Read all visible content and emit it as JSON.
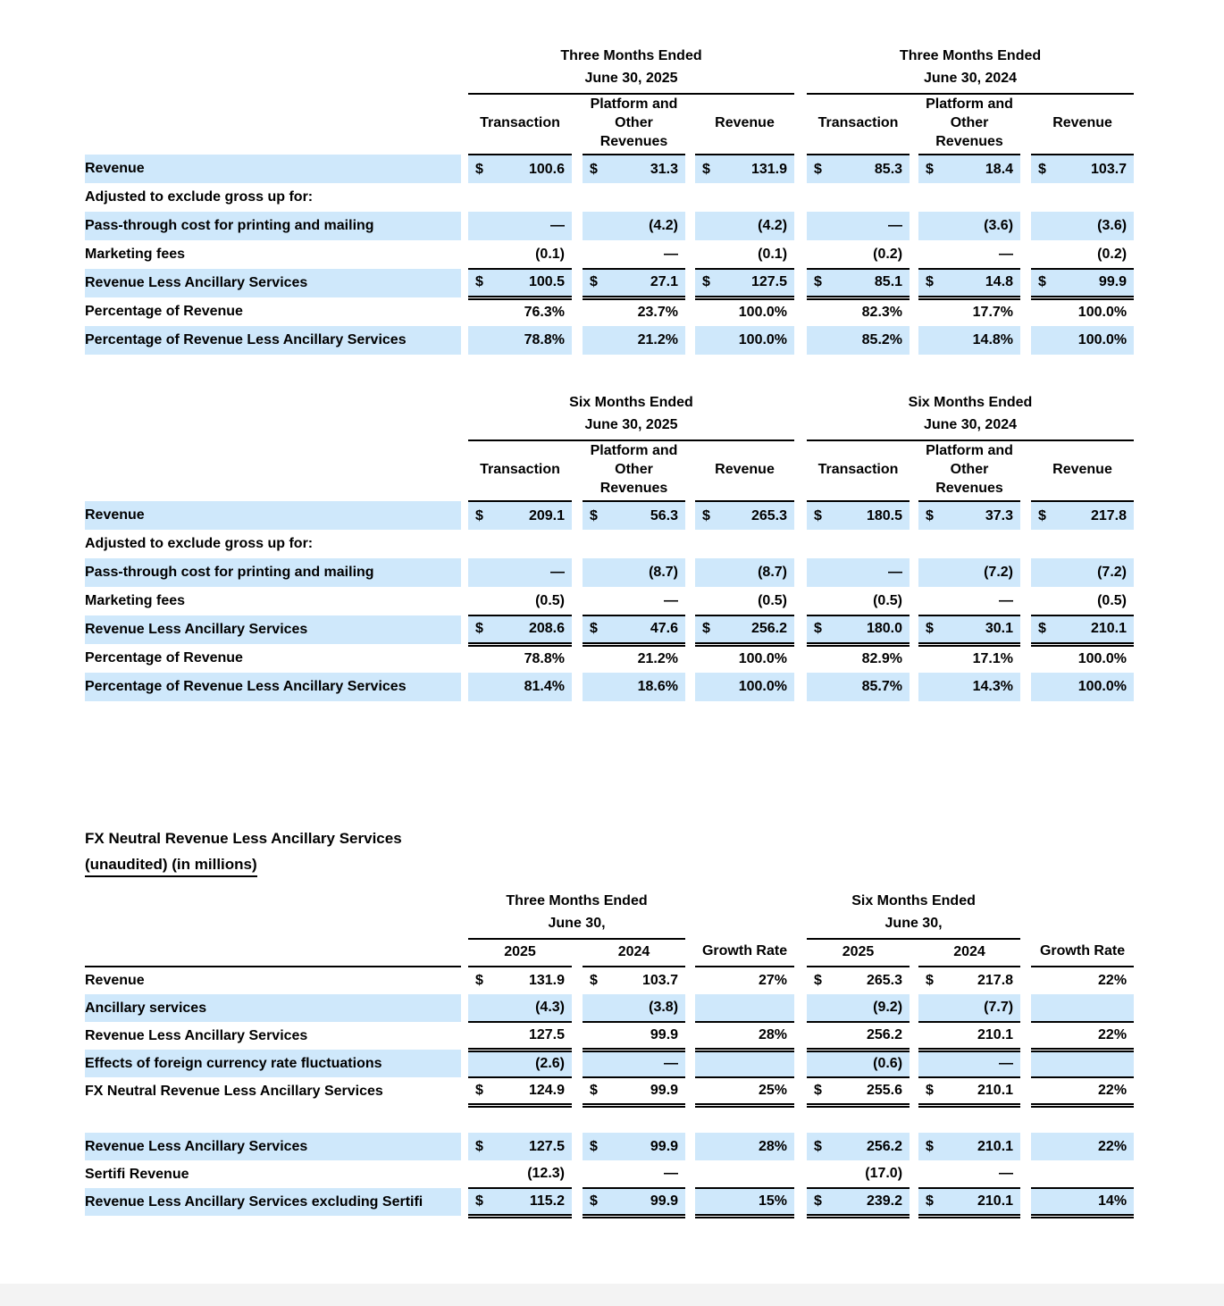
{
  "page": {
    "highlight_color": "#cfe8fb",
    "footer_bar_color": "#f3f3f3"
  },
  "quarter_table": {
    "groups": [
      {
        "line1": "Three Months Ended",
        "line2": "June 30, 2025"
      },
      {
        "line1": "Three Months Ended",
        "line2": "June 30, 2024"
      }
    ],
    "col_headers": [
      {
        "line1": "",
        "line2": "Transaction"
      },
      {
        "line1": "Platform and",
        "line2": "Other Revenues"
      },
      {
        "line1": "",
        "line2": "Revenue"
      },
      {
        "line1": "",
        "line2": "Transaction"
      },
      {
        "line1": "Platform and",
        "line2": "Other Revenues"
      },
      {
        "line1": "",
        "line2": "Revenue"
      }
    ],
    "rows": [
      {
        "label": "Revenue",
        "highlight": true,
        "rule": "none",
        "cells": [
          {
            "c": "$",
            "v": "100.6"
          },
          {
            "c": "$",
            "v": "31.3"
          },
          {
            "c": "$",
            "v": "131.9"
          },
          {
            "c": "$",
            "v": "85.3"
          },
          {
            "c": "$",
            "v": "18.4"
          },
          {
            "c": "$",
            "v": "103.7"
          }
        ]
      },
      {
        "label": "Adjusted to exclude gross up for:",
        "highlight": false,
        "rule": "none",
        "cells": [
          null,
          null,
          null,
          null,
          null,
          null
        ]
      },
      {
        "label": "Pass-through cost for printing and mailing",
        "highlight": true,
        "rule": "none",
        "cells": [
          {
            "v": "—"
          },
          {
            "v": "(4.2)"
          },
          {
            "v": "(4.2)"
          },
          {
            "v": "—"
          },
          {
            "v": "(3.6)"
          },
          {
            "v": "(3.6)"
          }
        ]
      },
      {
        "label": "Marketing fees",
        "highlight": false,
        "rule": "single",
        "cells": [
          {
            "v": "(0.1)"
          },
          {
            "v": "—"
          },
          {
            "v": "(0.1)"
          },
          {
            "v": "(0.2)"
          },
          {
            "v": "—"
          },
          {
            "v": "(0.2)"
          }
        ]
      },
      {
        "label": "Revenue Less Ancillary Services",
        "highlight": true,
        "rule": "double",
        "cells": [
          {
            "c": "$",
            "v": "100.5"
          },
          {
            "c": "$",
            "v": "27.1"
          },
          {
            "c": "$",
            "v": "127.5"
          },
          {
            "c": "$",
            "v": "85.1"
          },
          {
            "c": "$",
            "v": "14.8"
          },
          {
            "c": "$",
            "v": "99.9"
          }
        ]
      },
      {
        "label": "Percentage of Revenue",
        "highlight": false,
        "rule": "none",
        "cells": [
          {
            "v": "76.3%"
          },
          {
            "v": "23.7%"
          },
          {
            "v": "100.0%"
          },
          {
            "v": "82.3%"
          },
          {
            "v": "17.7%"
          },
          {
            "v": "100.0%"
          }
        ]
      },
      {
        "label": "Percentage of Revenue Less Ancillary Services",
        "highlight": true,
        "rule": "none",
        "cells": [
          {
            "v": "78.8%"
          },
          {
            "v": "21.2%"
          },
          {
            "v": "100.0%"
          },
          {
            "v": "85.2%"
          },
          {
            "v": "14.8%"
          },
          {
            "v": "100.0%"
          }
        ]
      }
    ]
  },
  "half_table": {
    "groups": [
      {
        "line1": "Six Months Ended",
        "line2": "June 30, 2025"
      },
      {
        "line1": "Six Months Ended",
        "line2": "June 30, 2024"
      }
    ],
    "col_headers": [
      {
        "line1": "",
        "line2": "Transaction"
      },
      {
        "line1": "Platform and",
        "line2": "Other Revenues"
      },
      {
        "line1": "",
        "line2": "Revenue"
      },
      {
        "line1": "",
        "line2": "Transaction"
      },
      {
        "line1": "Platform and",
        "line2": "Other Revenues"
      },
      {
        "line1": "",
        "line2": "Revenue"
      }
    ],
    "rows": [
      {
        "label": "Revenue",
        "highlight": true,
        "rule": "none",
        "cells": [
          {
            "c": "$",
            "v": "209.1"
          },
          {
            "c": "$",
            "v": "56.3"
          },
          {
            "c": "$",
            "v": "265.3"
          },
          {
            "c": "$",
            "v": "180.5"
          },
          {
            "c": "$",
            "v": "37.3"
          },
          {
            "c": "$",
            "v": "217.8"
          }
        ]
      },
      {
        "label": "Adjusted to exclude gross up for:",
        "highlight": false,
        "rule": "none",
        "cells": [
          null,
          null,
          null,
          null,
          null,
          null
        ]
      },
      {
        "label": "Pass-through cost for printing and mailing",
        "highlight": true,
        "rule": "none",
        "cells": [
          {
            "v": "—"
          },
          {
            "v": "(8.7)"
          },
          {
            "v": "(8.7)"
          },
          {
            "v": "—"
          },
          {
            "v": "(7.2)"
          },
          {
            "v": "(7.2)"
          }
        ]
      },
      {
        "label": "Marketing fees",
        "highlight": false,
        "rule": "single",
        "cells": [
          {
            "v": "(0.5)"
          },
          {
            "v": "—"
          },
          {
            "v": "(0.5)"
          },
          {
            "v": "(0.5)"
          },
          {
            "v": "—"
          },
          {
            "v": "(0.5)"
          }
        ]
      },
      {
        "label": "Revenue Less Ancillary Services",
        "highlight": true,
        "rule": "double",
        "cells": [
          {
            "c": "$",
            "v": "208.6"
          },
          {
            "c": "$",
            "v": "47.6"
          },
          {
            "c": "$",
            "v": "256.2"
          },
          {
            "c": "$",
            "v": "180.0"
          },
          {
            "c": "$",
            "v": "30.1"
          },
          {
            "c": "$",
            "v": "210.1"
          }
        ]
      },
      {
        "label": "Percentage of Revenue",
        "highlight": false,
        "rule": "none",
        "cells": [
          {
            "v": "78.8%"
          },
          {
            "v": "21.2%"
          },
          {
            "v": "100.0%"
          },
          {
            "v": "82.9%"
          },
          {
            "v": "17.1%"
          },
          {
            "v": "100.0%"
          }
        ]
      },
      {
        "label": "Percentage of Revenue Less Ancillary Services",
        "highlight": true,
        "rule": "none",
        "cells": [
          {
            "v": "81.4%"
          },
          {
            "v": "18.6%"
          },
          {
            "v": "100.0%"
          },
          {
            "v": "85.7%"
          },
          {
            "v": "14.3%"
          },
          {
            "v": "100.0%"
          }
        ]
      }
    ]
  },
  "fx_section": {
    "title_line1": "FX Neutral Revenue Less Ancillary Services",
    "title_line2": "(unaudited) (in millions)",
    "table": {
      "groups": [
        {
          "line1": "Three Months Ended",
          "line2": "June 30,"
        },
        {
          "line1": "Six Months Ended",
          "line2": "June 30,"
        }
      ],
      "col_headers": [
        "2025",
        "2024",
        "Growth Rate",
        "2025",
        "2024",
        "Growth Rate"
      ],
      "rows": [
        {
          "label": "Revenue",
          "highlight": false,
          "rule": "none",
          "cells": [
            {
              "c": "$",
              "v": "131.9"
            },
            {
              "c": "$",
              "v": "103.7"
            },
            {
              "v": "27%"
            },
            {
              "c": "$",
              "v": "265.3"
            },
            {
              "c": "$",
              "v": "217.8"
            },
            {
              "v": "22%"
            }
          ]
        },
        {
          "label": "Ancillary services",
          "highlight": true,
          "rule": "single",
          "cells": [
            {
              "v": "(4.3)"
            },
            {
              "v": "(3.8)"
            },
            {
              "v": ""
            },
            {
              "v": "(9.2)"
            },
            {
              "v": "(7.7)"
            },
            {
              "v": ""
            }
          ]
        },
        {
          "label": "Revenue Less Ancillary Services",
          "highlight": false,
          "rule": "double",
          "cells": [
            {
              "v": "127.5"
            },
            {
              "v": "99.9"
            },
            {
              "v": "28%"
            },
            {
              "v": "256.2"
            },
            {
              "v": "210.1"
            },
            {
              "v": "22%"
            }
          ]
        },
        {
          "label": "Effects of foreign currency rate fluctuations",
          "highlight": true,
          "rule": "single",
          "cells": [
            {
              "v": "(2.6)"
            },
            {
              "v": "—"
            },
            {
              "v": ""
            },
            {
              "v": "(0.6)"
            },
            {
              "v": "—"
            },
            {
              "v": ""
            }
          ]
        },
        {
          "label": "FX Neutral Revenue Less Ancillary Services",
          "highlight": false,
          "rule": "double",
          "cells": [
            {
              "c": "$",
              "v": "124.9"
            },
            {
              "c": "$",
              "v": "99.9"
            },
            {
              "v": "25%"
            },
            {
              "c": "$",
              "v": "255.6"
            },
            {
              "c": "$",
              "v": "210.1"
            },
            {
              "v": "22%"
            }
          ]
        },
        {
          "label": "",
          "highlight": false,
          "rule": "none",
          "spacer": true,
          "cells": [
            null,
            null,
            null,
            null,
            null,
            null
          ]
        },
        {
          "label": "Revenue Less Ancillary Services",
          "highlight": true,
          "rule": "none",
          "cells": [
            {
              "c": "$",
              "v": "127.5"
            },
            {
              "c": "$",
              "v": "99.9"
            },
            {
              "v": "28%"
            },
            {
              "c": "$",
              "v": "256.2"
            },
            {
              "c": "$",
              "v": "210.1"
            },
            {
              "v": "22%"
            }
          ]
        },
        {
          "label": "Sertifi Revenue",
          "highlight": false,
          "rule": "single",
          "cells": [
            {
              "v": "(12.3)"
            },
            {
              "v": "—"
            },
            {
              "v": ""
            },
            {
              "v": "(17.0)"
            },
            {
              "v": "—"
            },
            {
              "v": ""
            }
          ]
        },
        {
          "label": "Revenue Less Ancillary Services excluding Sertifi",
          "highlight": true,
          "rule": "double",
          "cells": [
            {
              "c": "$",
              "v": "115.2"
            },
            {
              "c": "$",
              "v": "99.9"
            },
            {
              "v": "15%"
            },
            {
              "c": "$",
              "v": "239.2"
            },
            {
              "c": "$",
              "v": "210.1"
            },
            {
              "v": "14%"
            }
          ]
        }
      ]
    }
  }
}
